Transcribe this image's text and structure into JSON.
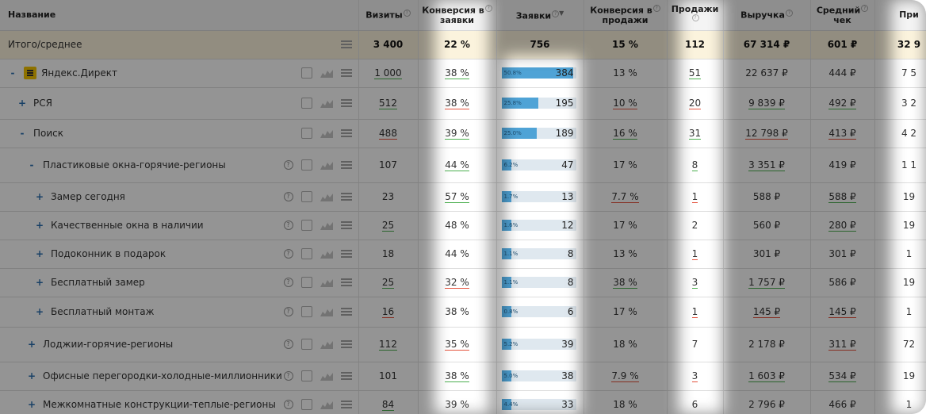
{
  "headers": {
    "name": "Название",
    "visits": "Визиты",
    "conv_leads_1": "Конверсия в",
    "conv_leads_2": "заявки",
    "leads": "Заявки",
    "conv_sales_1": "Конверсия в",
    "conv_sales_2": "продажи",
    "sales": "Продажи",
    "revenue": "Выручка",
    "avg_1": "Средний",
    "avg_2": "чек",
    "extra": "При"
  },
  "rows": [
    {
      "name": "Итого/среднее",
      "visits": "3 400",
      "conv": "22 %",
      "leads": "756",
      "convs": "15 %",
      "sales": "112",
      "rev": "67 314 ₽",
      "avg": "601 ₽",
      "extra": "32 9"
    },
    {
      "name": "Яндекс.Директ",
      "visits": "1 000",
      "conv": "38 %",
      "leads_pct": "50.8%",
      "leads": "384",
      "fill": 0.508,
      "convs": "13 %",
      "sales": "51",
      "rev": "22 637 ₽",
      "avg": "444 ₽",
      "extra": "7 5"
    },
    {
      "name": "РСЯ",
      "visits": "512",
      "conv": "38 %",
      "leads_pct": "25.8%",
      "leads": "195",
      "fill": 0.258,
      "convs": "10 %",
      "sales": "20",
      "rev": "9 839 ₽",
      "avg": "492 ₽",
      "extra": "3 2"
    },
    {
      "name": "Поиск",
      "visits": "488",
      "conv": "39 %",
      "leads_pct": "25.0%",
      "leads": "189",
      "fill": 0.25,
      "convs": "16 %",
      "sales": "31",
      "rev": "12 798 ₽",
      "avg": "413 ₽",
      "extra": "4 2"
    },
    {
      "name": "Пластиковые окна-горячие-регионы",
      "visits": "107",
      "conv": "44 %",
      "leads_pct": "6.2%",
      "leads": "47",
      "fill": 0.062,
      "convs": "17 %",
      "sales": "8",
      "rev": "3 351 ₽",
      "avg": "419 ₽",
      "extra": "1 1"
    },
    {
      "name": "Замер сегодня",
      "visits": "23",
      "conv": "57 %",
      "leads_pct": "1.7%",
      "leads": "13",
      "fill": 0.017,
      "convs": "7.7 %",
      "sales": "1",
      "rev": "588 ₽",
      "avg": "588 ₽",
      "extra": "19"
    },
    {
      "name": "Качественные окна в наличии",
      "visits": "25",
      "conv": "48 %",
      "leads_pct": "1.6%",
      "leads": "12",
      "fill": 0.016,
      "convs": "17 %",
      "sales": "2",
      "rev": "560 ₽",
      "avg": "280 ₽",
      "extra": "19"
    },
    {
      "name": "Подоконник в подарок",
      "visits": "18",
      "conv": "44 %",
      "leads_pct": "1.1%",
      "leads": "8",
      "fill": 0.011,
      "convs": "13 %",
      "sales": "1",
      "rev": "301 ₽",
      "avg": "301 ₽",
      "extra": "1"
    },
    {
      "name": "Бесплатный замер",
      "visits": "25",
      "conv": "32 %",
      "leads_pct": "1.1%",
      "leads": "8",
      "fill": 0.011,
      "convs": "38 %",
      "sales": "3",
      "rev": "1 757 ₽",
      "avg": "586 ₽",
      "extra": "19"
    },
    {
      "name": "Бесплатный монтаж",
      "visits": "16",
      "conv": "38 %",
      "leads_pct": "0.8%",
      "leads": "6",
      "fill": 0.008,
      "convs": "17 %",
      "sales": "1",
      "rev": "145 ₽",
      "avg": "145 ₽",
      "extra": "1"
    },
    {
      "name": "Лоджии-горячие-регионы",
      "visits": "112",
      "conv": "35 %",
      "leads_pct": "5.2%",
      "leads": "39",
      "fill": 0.052,
      "convs": "18 %",
      "sales": "7",
      "rev": "2 178 ₽",
      "avg": "311 ₽",
      "extra": "72"
    },
    {
      "name": "Офисные перегородки-холодные-миллионники",
      "visits": "101",
      "conv": "38 %",
      "leads_pct": "5.0%",
      "leads": "38",
      "fill": 0.05,
      "convs": "7.9 %",
      "sales": "3",
      "rev": "1 603 ₽",
      "avg": "534 ₽",
      "extra": "19"
    },
    {
      "name": "Межкомнатные конструкции-теплые-регионы",
      "visits": "84",
      "conv": "39 %",
      "leads_pct": "4.4%",
      "leads": "33",
      "fill": 0.044,
      "convs": "18 %",
      "sales": "6",
      "rev": "2 796 ₽",
      "avg": "466 ₽",
      "extra": "1"
    }
  ],
  "help_mark": "?",
  "sort_mark": "▼",
  "toggle_minus": "-",
  "toggle_plus": "+"
}
